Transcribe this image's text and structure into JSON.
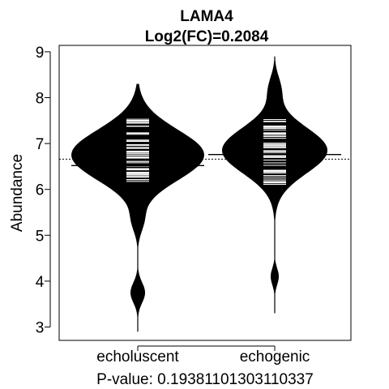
{
  "chart_data": {
    "type": "beanplot",
    "title": "LAMA4",
    "subtitle": "Log2(FC)=0.2084",
    "ylabel": "Abundance",
    "ylim": [
      2.75,
      9.2
    ],
    "yticks": [
      "3",
      "4",
      "5",
      "6",
      "7",
      "8",
      "9"
    ],
    "categories": [
      "echoluscent",
      "echogenic"
    ],
    "overall_mean": 6.66,
    "group_means": [
      6.52,
      6.76
    ],
    "density_ranges": [
      [
        2.9,
        8.3
      ],
      [
        3.3,
        8.9
      ]
    ],
    "group_color": "#000000",
    "line_color": "#ffffff",
    "footer": "P-value: 0.19381101303110337"
  }
}
